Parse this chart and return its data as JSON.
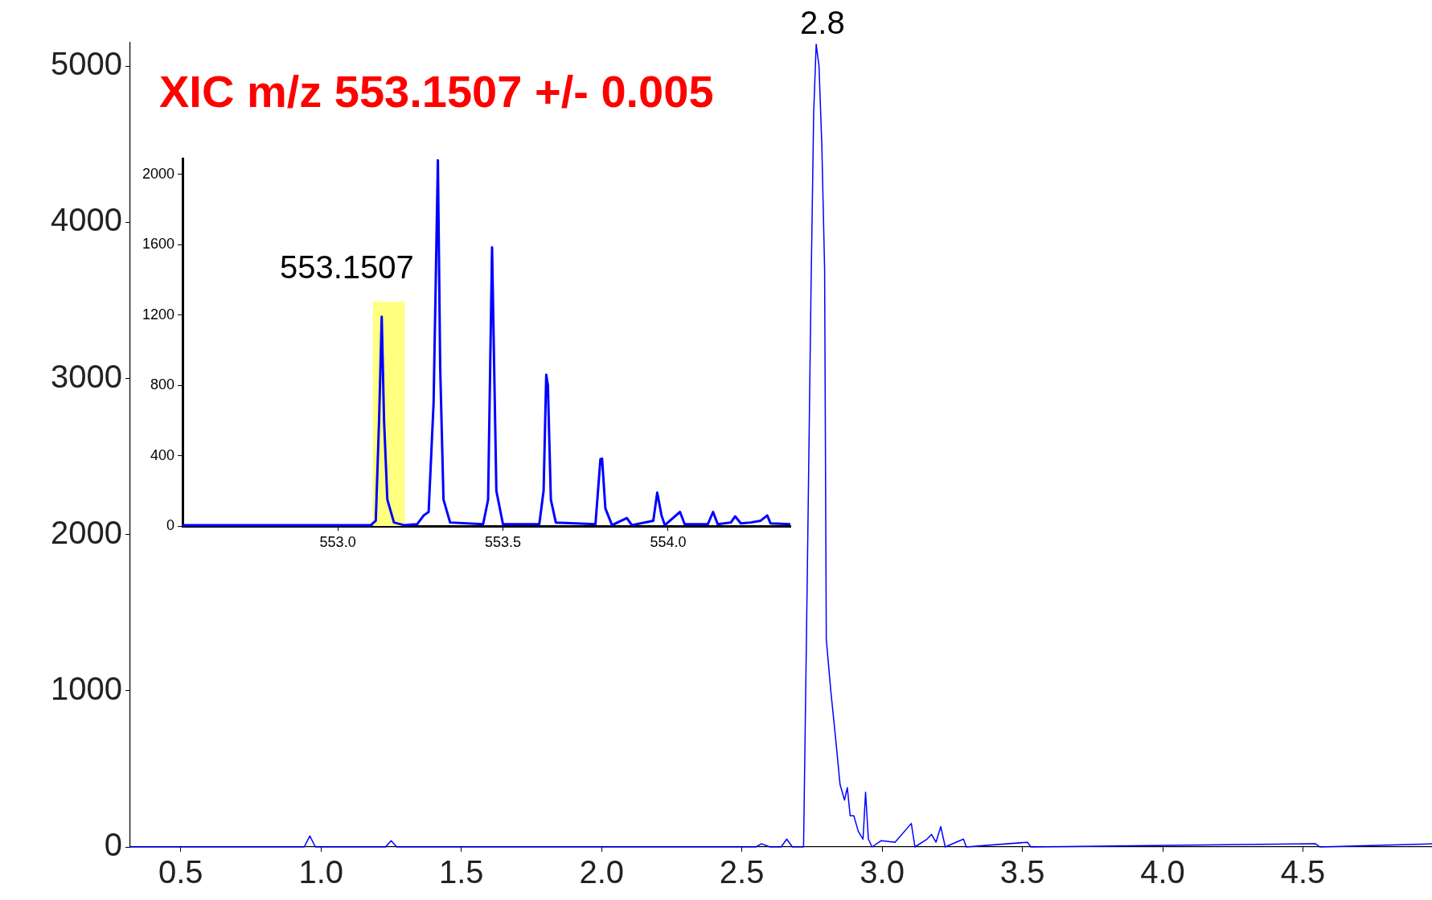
{
  "chart_data": [
    {
      "type": "line",
      "title": "XIC m/z 553.1507 +/- 0.005",
      "xlim": [
        0.32,
        4.96
      ],
      "ylim": [
        0,
        5150
      ],
      "xticks": [
        {
          "value": 0.5,
          "label": "0.5"
        },
        {
          "value": 1,
          "label": "1.0"
        },
        {
          "value": 1.5,
          "label": "1.5"
        },
        {
          "value": 2,
          "label": "2.0"
        },
        {
          "value": 2.5,
          "label": "2.5"
        },
        {
          "value": 3,
          "label": "3.0"
        },
        {
          "value": 3.5,
          "label": "3.5"
        },
        {
          "value": 4,
          "label": "4.0"
        },
        {
          "value": 4.5,
          "label": "4.5"
        }
      ],
      "yticks": [
        0,
        1000,
        2000,
        3000,
        4000,
        5000
      ],
      "grid": false,
      "legend": false,
      "marker": "none",
      "annotations": [
        {
          "text": "2.8",
          "x": 2.77,
          "y": 5140
        }
      ],
      "series": [
        {
          "color": "#0000ff",
          "x": [
            0.32,
            0.5,
            0.94,
            0.96,
            0.98,
            1.23,
            1.25,
            1.27,
            2.55,
            2.57,
            2.6,
            2.64,
            2.66,
            2.68,
            2.72,
            2.733,
            2.746,
            2.756,
            2.765,
            2.775,
            2.785,
            2.795,
            2.801,
            2.817,
            2.834,
            2.85,
            2.866,
            2.876,
            2.886,
            2.899,
            2.915,
            2.932,
            2.941,
            2.951,
            2.964,
            2.997,
            3.046,
            3.104,
            3.117,
            3.16,
            3.176,
            3.192,
            3.209,
            3.225,
            3.29,
            3.3,
            3.518,
            3.53,
            4.545,
            4.56,
            4.96
          ],
          "values": [
            0,
            0,
            0,
            70,
            0,
            0,
            40,
            0,
            0,
            20,
            0,
            0,
            50,
            0,
            0,
            1700,
            3500,
            4700,
            5140,
            5000,
            4500,
            3700,
            1330,
            1000,
            700,
            400,
            300,
            380,
            200,
            200,
            100,
            50,
            350,
            50,
            0,
            40,
            30,
            150,
            0,
            50,
            80,
            30,
            130,
            0,
            50,
            0,
            30,
            0,
            20,
            0,
            20
          ]
        }
      ]
    },
    {
      "type": "line",
      "xlim": [
        552.53,
        554.37
      ],
      "ylim": [
        0,
        2090
      ],
      "xticks": [
        {
          "value": 553,
          "label": "553.0"
        },
        {
          "value": 553.5,
          "label": "553.5"
        },
        {
          "value": 554,
          "label": "554.0"
        }
      ],
      "yticks": [
        0,
        400,
        800,
        1200,
        1600,
        2000
      ],
      "grid": false,
      "legend": false,
      "marker": "none",
      "annotations": [
        {
          "text": "553.1507",
          "x": 553.133,
          "y": 1190
        }
      ],
      "bands": [
        {
          "axis": "x",
          "from": 553.106,
          "to": 553.203,
          "color": "#ffff80"
        }
      ],
      "series": [
        {
          "color": "#0000ff",
          "x": [
            552.53,
            553.1,
            553.115,
            553.125,
            553.133,
            553.14,
            553.15,
            553.17,
            553.2,
            553.24,
            553.26,
            553.275,
            553.29,
            553.303,
            553.31,
            553.32,
            553.34,
            553.44,
            553.455,
            553.467,
            553.48,
            553.5,
            553.61,
            553.623,
            553.631,
            553.636,
            553.645,
            553.66,
            553.78,
            553.795,
            553.8,
            553.81,
            553.83,
            553.875,
            553.89,
            553.955,
            553.967,
            553.98,
            553.99,
            554.036,
            554.05,
            554.12,
            554.136,
            554.15,
            554.19,
            554.203,
            554.22,
            554.25,
            554.28,
            554.3,
            554.31,
            554.37
          ],
          "values": [
            5,
            5,
            30,
            600,
            1190,
            600,
            150,
            20,
            5,
            10,
            60,
            80,
            700,
            2080,
            900,
            150,
            20,
            10,
            150,
            1585,
            200,
            10,
            10,
            200,
            860,
            800,
            150,
            20,
            10,
            380,
            383,
            100,
            5,
            45,
            5,
            30,
            190,
            60,
            5,
            80,
            10,
            10,
            80,
            10,
            20,
            55,
            15,
            20,
            30,
            60,
            15,
            10
          ]
        }
      ]
    }
  ]
}
